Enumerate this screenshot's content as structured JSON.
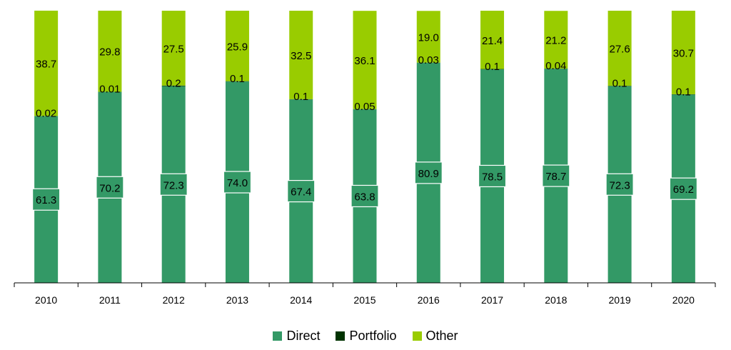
{
  "chart_data": {
    "type": "bar",
    "stacked": true,
    "categories": [
      "2010",
      "2011",
      "2012",
      "2013",
      "2014",
      "2015",
      "2016",
      "2017",
      "2018",
      "2019",
      "2020"
    ],
    "series": [
      {
        "name": "Direct",
        "color": "#339966",
        "values": [
          61.3,
          70.2,
          72.3,
          74.0,
          67.4,
          63.8,
          80.9,
          78.5,
          78.7,
          72.3,
          69.2
        ],
        "labels": [
          "61.3",
          "70.2",
          "72.3",
          "74.0",
          "67.4",
          "63.8",
          "80.9",
          "78.5",
          "78.7",
          "72.3",
          "69.2"
        ]
      },
      {
        "name": "Portfolio",
        "color": "#003300",
        "values": [
          0.02,
          0.01,
          0.2,
          0.1,
          0.1,
          0.05,
          0.03,
          0.1,
          0.04,
          0.1,
          0.1
        ],
        "labels": [
          "0.02",
          "0.01",
          "0.2",
          "0.1",
          "0.1",
          "0.05",
          "0.03",
          "0.1",
          "0.04",
          "0.1",
          "0.1"
        ]
      },
      {
        "name": "Other",
        "color": "#99CC00",
        "values": [
          38.7,
          29.8,
          27.5,
          25.9,
          32.5,
          36.1,
          19.0,
          21.4,
          21.2,
          27.6,
          30.7
        ],
        "labels": [
          "38.7",
          "29.8",
          "27.5",
          "25.9",
          "32.5",
          "36.1",
          "19.0",
          "21.4",
          "21.2",
          "27.6",
          "30.7"
        ]
      }
    ],
    "ylim": [
      0,
      100
    ],
    "grid": false,
    "legend": "bottom"
  }
}
